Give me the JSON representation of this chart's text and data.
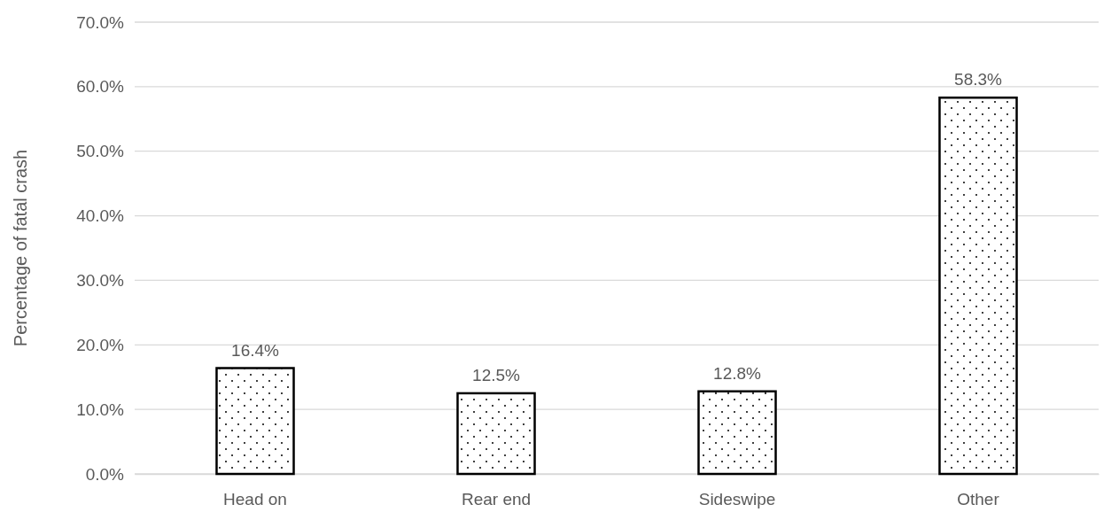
{
  "chart_data": {
    "type": "bar",
    "ylabel": "Percentage of fatal crash",
    "categories": [
      "Head on",
      "Rear end",
      "Sideswipe",
      "Other"
    ],
    "values": [
      16.4,
      12.5,
      12.8,
      58.3
    ],
    "value_labels": [
      "16.4%",
      "12.5%",
      "12.8%",
      "58.3%"
    ],
    "color": "#000000",
    "ylim": [
      0,
      70
    ],
    "yticks": [
      {
        "value": 0,
        "label": "0.0%"
      },
      {
        "value": 10,
        "label": "10.0%"
      },
      {
        "value": 20,
        "label": "20.0%"
      },
      {
        "value": 30,
        "label": "30.0%"
      },
      {
        "value": 40,
        "label": "40.0%"
      },
      {
        "value": 50,
        "label": "50.0%"
      },
      {
        "value": 60,
        "label": "60.0%"
      },
      {
        "value": 70,
        "label": "70.0%"
      }
    ],
    "grid": "y"
  }
}
